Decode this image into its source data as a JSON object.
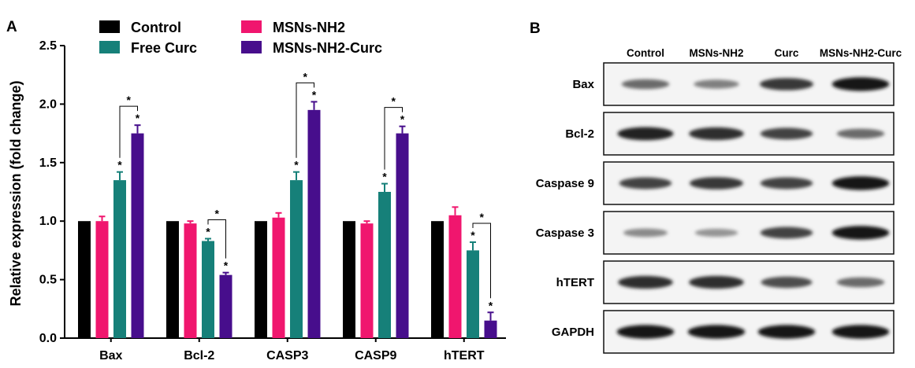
{
  "panels": {
    "a": "A",
    "b": "B"
  },
  "chart_data": {
    "type": "bar",
    "title": "",
    "xlabel": "",
    "ylabel": "Relative expression (fold change)",
    "ylim": [
      0,
      2.5
    ],
    "yticks": [
      "0.0",
      "0.5",
      "1.0",
      "1.5",
      "2.0",
      "2.5"
    ],
    "categories": [
      "Bax",
      "Bcl-2",
      "CASP3",
      "CASP9",
      "hTERT"
    ],
    "legend_position": "top",
    "series": [
      {
        "name": "Control",
        "color": "#000000",
        "values": [
          1.0,
          1.0,
          1.0,
          1.0,
          1.0
        ],
        "errors": [
          0,
          0,
          0,
          0,
          0
        ],
        "sig": [
          false,
          false,
          false,
          false,
          false
        ]
      },
      {
        "name": "MSNs-NH2",
        "color": "#f0166e",
        "values": [
          1.0,
          0.98,
          1.03,
          0.98,
          1.05
        ],
        "errors": [
          0.04,
          0.02,
          0.04,
          0.02,
          0.07
        ],
        "sig": [
          false,
          false,
          false,
          false,
          false
        ]
      },
      {
        "name": "Free Curc",
        "color": "#168079",
        "values": [
          1.35,
          0.83,
          1.35,
          1.25,
          0.75
        ],
        "errors": [
          0.07,
          0.02,
          0.07,
          0.07,
          0.07
        ],
        "sig": [
          true,
          true,
          true,
          true,
          true
        ]
      },
      {
        "name": "MSNs-NH2-Curc",
        "color": "#470e8c",
        "values": [
          1.75,
          0.54,
          1.95,
          1.75,
          0.15
        ],
        "errors": [
          0.07,
          0.02,
          0.07,
          0.06,
          0.07
        ],
        "sig": [
          true,
          true,
          true,
          true,
          true
        ]
      }
    ],
    "significance_mark": "*"
  },
  "blot": {
    "columns": [
      "Control",
      "MSNs-NH2",
      "Curc",
      "MSNs-NH2-Curc"
    ],
    "rows": [
      {
        "label": "Bax",
        "intensity": [
          0.55,
          0.45,
          0.8,
          0.95
        ]
      },
      {
        "label": "Bcl-2",
        "intensity": [
          0.9,
          0.85,
          0.75,
          0.55
        ]
      },
      {
        "label": "Caspase 9",
        "intensity": [
          0.75,
          0.8,
          0.75,
          0.95
        ]
      },
      {
        "label": "Caspase 3",
        "intensity": [
          0.4,
          0.35,
          0.75,
          0.95
        ]
      },
      {
        "label": "hTERT",
        "intensity": [
          0.85,
          0.85,
          0.7,
          0.55
        ]
      },
      {
        "label": "GAPDH",
        "intensity": [
          0.95,
          0.95,
          0.95,
          0.95
        ]
      }
    ]
  }
}
